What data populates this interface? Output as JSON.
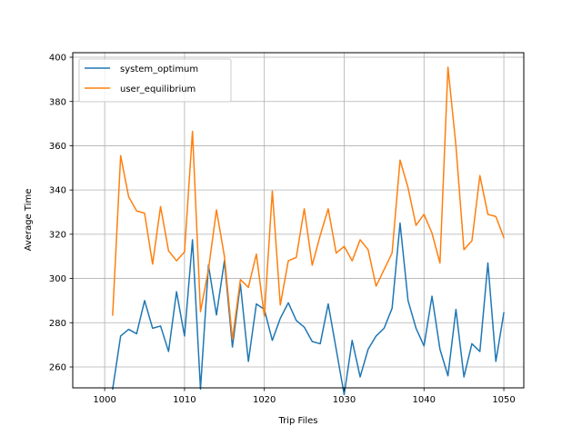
{
  "chart_data": {
    "type": "line",
    "xlabel": "Trip Files",
    "ylabel": "Average Time",
    "xlim": [
      996,
      1052.5
    ],
    "ylim": [
      424,
      404
    ],
    "xticks": [
      1000,
      1010,
      1020,
      1030,
      1040,
      1050
    ],
    "yticks": [
      260,
      280,
      300,
      320,
      340,
      360,
      380,
      400
    ],
    "grid": true,
    "legend": "top-left",
    "x": [
      1001,
      1002,
      1003,
      1004,
      1005,
      1006,
      1007,
      1008,
      1009,
      1010,
      1011,
      1012,
      1013,
      1014,
      1015,
      1016,
      1017,
      1018,
      1019,
      1020,
      1021,
      1022,
      1023,
      1024,
      1025,
      1026,
      1027,
      1028,
      1029,
      1030,
      1031,
      1032,
      1033,
      1034,
      1035,
      1036,
      1037,
      1038,
      1039,
      1040,
      1041,
      1042,
      1043,
      1044,
      1045,
      1046,
      1047,
      1048,
      1049,
      1050
    ],
    "series": [
      {
        "name": "system_optimum",
        "color": "#1f77b4",
        "values": [
          250,
          274,
          277,
          275,
          290,
          277.5,
          278.5,
          267,
          294,
          274,
          317.5,
          250,
          306,
          283.5,
          308,
          269,
          297.5,
          262.5,
          288.5,
          286,
          272,
          282,
          289,
          281,
          278,
          271.5,
          270.5,
          288.5,
          268,
          247.5,
          272,
          255.5,
          268,
          274,
          277.5,
          286.5,
          325,
          290,
          277.5,
          269.5,
          292,
          268,
          256,
          286,
          255.5,
          270.5,
          267,
          307,
          262.5,
          284.5
        ]
      },
      {
        "name": "user_equilibrium",
        "color": "#ff7f0e",
        "values": [
          283.5,
          355.5,
          337,
          330.5,
          329.5,
          306.5,
          332.5,
          312.5,
          308,
          312,
          366.5,
          285,
          304,
          331,
          310,
          272.5,
          299.5,
          296,
          311,
          283,
          339.5,
          288,
          308,
          309.5,
          331.5,
          306,
          319.5,
          331.5,
          311.5,
          314.5,
          308,
          317.5,
          313,
          296.5,
          304,
          311.5,
          353.5,
          341,
          324,
          329,
          320.5,
          307,
          395.5,
          360,
          313,
          317,
          346.5,
          329,
          328,
          318.5
        ]
      }
    ]
  }
}
